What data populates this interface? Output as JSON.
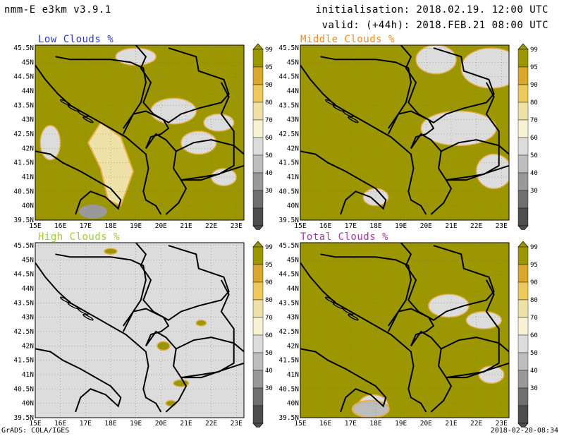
{
  "header": {
    "model": "nmm-E e3km v3.9.1",
    "init": "initialisation: 2018.02.19. 12:00 UTC",
    "valid": "valid: (+44h): 2018.FEB.21 08:00 UTC"
  },
  "footer": {
    "left": "GrADS: COLA/IGES",
    "right": "2018-02-20-08:34"
  },
  "lat_ticks": [
    "45.5N",
    "45N",
    "44.5N",
    "44N",
    "43.5N",
    "43N",
    "42.5N",
    "42N",
    "41.5N",
    "41N",
    "40.5N",
    "40N",
    "39.5N"
  ],
  "lon_ticks": [
    "15E",
    "16E",
    "17E",
    "18E",
    "19E",
    "20E",
    "21E",
    "22E",
    "23E"
  ],
  "legend": {
    "labels": [
      "99",
      "95",
      "90",
      "80",
      "70",
      "60",
      "50",
      "40",
      "30"
    ],
    "colors": [
      "#9c9600",
      "#d9a72e",
      "#ecc95a",
      "#efe2a8",
      "#f8f2d4",
      "#dcdcdc",
      "#bdbdbd",
      "#999999",
      "#6f6f6f",
      "#4d4d4d"
    ]
  },
  "colors": {
    "olive": "#9c9600",
    "grey": "#dcdcdc",
    "orange": "#e4b04a",
    "border": "#000000"
  },
  "panels": [
    {
      "id": "low",
      "title": "Low Clouds %",
      "title_color": "#2b38c8"
    },
    {
      "id": "middle",
      "title": "Middle Clouds %",
      "title_color": "#f28a1c"
    },
    {
      "id": "high",
      "title": "High Clouds %",
      "title_color": "#9ccd3c"
    },
    {
      "id": "total",
      "title": "Total Clouds %",
      "title_color": "#a23aa8"
    }
  ]
}
